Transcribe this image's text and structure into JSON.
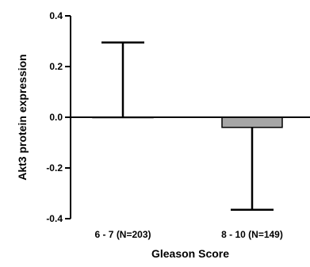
{
  "chart_data": {
    "type": "bar",
    "categories": [
      "6 - 7 (N=203)",
      "8 - 10 (N=149)"
    ],
    "values": [
      0.0,
      -0.04
    ],
    "error_bars": [
      {
        "direction": "up",
        "value": 0.295
      },
      {
        "direction": "down",
        "value": -0.365
      }
    ],
    "bar_colors": [
      "#ffffff",
      "#a6a6a6"
    ],
    "xlabel": "Gleason Score",
    "ylabel": "Akt3 protein expression",
    "ylim": [
      -0.4,
      0.4
    ],
    "yticks": [
      {
        "value": 0.4,
        "label": "0.4"
      },
      {
        "value": 0.2,
        "label": "0.2"
      },
      {
        "value": 0.0,
        "label": "0.0"
      },
      {
        "value": -0.2,
        "label": "-0.2"
      },
      {
        "value": -0.4,
        "label": "-0.4"
      }
    ],
    "grid": false
  }
}
